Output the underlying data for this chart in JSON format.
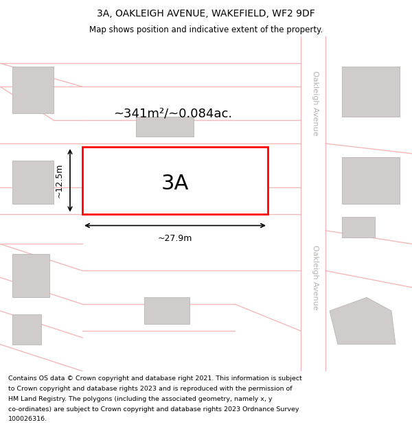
{
  "title_line1": "3A, OAKLEIGH AVENUE, WAKEFIELD, WF2 9DF",
  "title_line2": "Map shows position and indicative extent of the property.",
  "map_bg_color": "#f0eeee",
  "road_color": "#f5b8b8",
  "building_color": "#d0cccc",
  "highlight_color": "#ff0000",
  "area_label": "~341m²/~0.084ac.",
  "plot_label": "3A",
  "dim_width": "~27.9m",
  "dim_height": "~12.5m",
  "street_label_top": "Oakleigh Avenue",
  "street_label_bottom": "Oakleigh Avenue",
  "footer_lines": [
    "Contains OS data © Crown copyright and database right 2021. This information is subject",
    "to Crown copyright and database rights 2023 and is reproduced with the permission of",
    "HM Land Registry. The polygons (including the associated geometry, namely x, y",
    "co-ordinates) are subject to Crown copyright and database rights 2023 Ordnance Survey",
    "100026316."
  ]
}
